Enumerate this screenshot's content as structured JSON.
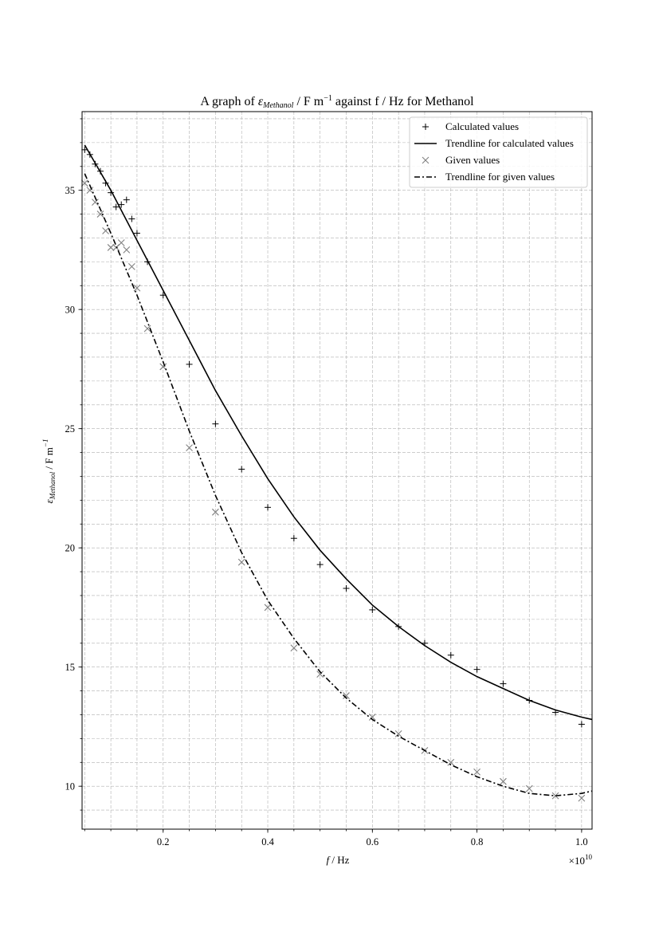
{
  "chart_data": {
    "type": "scatter",
    "title": {
      "prefix": "A graph of ",
      "eps": "ε",
      "sub": "Methanol",
      "mid": " / F m",
      "sup": "−1",
      "suffix": " against f / Hz for Methanol"
    },
    "xlabel": {
      "var": "f",
      "rest": " / Hz"
    },
    "ylabel": {
      "eps": "ε",
      "sub": "Methanol",
      "rest": " / F m",
      "sup": "−1"
    },
    "x_scale_label": "×10",
    "x_scale_exp": "10",
    "x_scale": 10000000000,
    "xlim": [
      0.045,
      1.02
    ],
    "ylim": [
      8.2,
      38.3
    ],
    "x_ticks": [
      0.2,
      0.4,
      0.6,
      0.8,
      1.0
    ],
    "x_tick_labels": [
      "0.2",
      "0.4",
      "0.6",
      "0.8",
      "1.0"
    ],
    "y_ticks": [
      10,
      15,
      20,
      25,
      30,
      35
    ],
    "y_tick_labels": [
      "10",
      "15",
      "20",
      "25",
      "30",
      "35"
    ],
    "grid": "major and minor, dashed",
    "legend_position": "upper right",
    "series": [
      {
        "name": "Calculated values",
        "kind": "marker",
        "marker": "plus",
        "color": "#000000",
        "x": [
          0.05,
          0.06,
          0.07,
          0.08,
          0.09,
          0.1,
          0.11,
          0.12,
          0.13,
          0.14,
          0.15,
          0.17,
          0.2,
          0.25,
          0.3,
          0.35,
          0.4,
          0.45,
          0.5,
          0.55,
          0.6,
          0.65,
          0.7,
          0.75,
          0.8,
          0.85,
          0.9,
          0.95,
          1.0
        ],
        "y": [
          36.7,
          36.5,
          36.1,
          35.8,
          35.3,
          34.9,
          34.3,
          34.4,
          34.6,
          33.8,
          33.2,
          32.0,
          30.6,
          27.7,
          25.2,
          23.3,
          21.7,
          20.4,
          19.3,
          18.3,
          17.4,
          16.7,
          16.0,
          15.5,
          14.9,
          14.3,
          13.6,
          13.1,
          12.6
        ]
      },
      {
        "name": "Trendline for calculated values",
        "kind": "line",
        "dash": "solid",
        "color": "#000000",
        "x": [
          0.05,
          0.1,
          0.15,
          0.2,
          0.25,
          0.3,
          0.35,
          0.4,
          0.45,
          0.5,
          0.55,
          0.6,
          0.65,
          0.7,
          0.75,
          0.8,
          0.85,
          0.9,
          0.95,
          1.0,
          1.02
        ],
        "y": [
          36.9,
          35.0,
          32.9,
          30.8,
          28.7,
          26.6,
          24.7,
          22.9,
          21.3,
          19.9,
          18.7,
          17.6,
          16.7,
          15.9,
          15.2,
          14.6,
          14.1,
          13.6,
          13.2,
          12.9,
          12.8
        ]
      },
      {
        "name": "Given values",
        "kind": "marker",
        "marker": "x",
        "color": "#808080",
        "x": [
          0.05,
          0.06,
          0.07,
          0.08,
          0.09,
          0.1,
          0.11,
          0.12,
          0.13,
          0.14,
          0.15,
          0.17,
          0.2,
          0.25,
          0.3,
          0.35,
          0.4,
          0.45,
          0.5,
          0.55,
          0.6,
          0.65,
          0.7,
          0.75,
          0.8,
          0.85,
          0.9,
          0.95,
          1.0
        ],
        "y": [
          35.3,
          35.0,
          34.5,
          34.0,
          33.3,
          32.6,
          32.6,
          32.8,
          32.5,
          31.8,
          30.9,
          29.2,
          27.6,
          24.2,
          21.5,
          19.4,
          17.5,
          15.8,
          14.7,
          13.8,
          12.9,
          12.2,
          11.5,
          11.0,
          10.6,
          10.2,
          9.9,
          9.6,
          9.5
        ]
      },
      {
        "name": "Trendline for given values",
        "kind": "line",
        "dash": "dashdot",
        "color": "#000000",
        "x": [
          0.05,
          0.1,
          0.15,
          0.2,
          0.25,
          0.3,
          0.35,
          0.4,
          0.45,
          0.5,
          0.55,
          0.6,
          0.65,
          0.7,
          0.75,
          0.8,
          0.85,
          0.9,
          0.95,
          1.0,
          1.02
        ],
        "y": [
          35.7,
          33.2,
          30.6,
          27.8,
          24.9,
          22.2,
          19.8,
          17.8,
          16.2,
          14.8,
          13.7,
          12.8,
          12.1,
          11.5,
          10.9,
          10.4,
          10.0,
          9.7,
          9.6,
          9.7,
          9.8
        ]
      }
    ]
  }
}
